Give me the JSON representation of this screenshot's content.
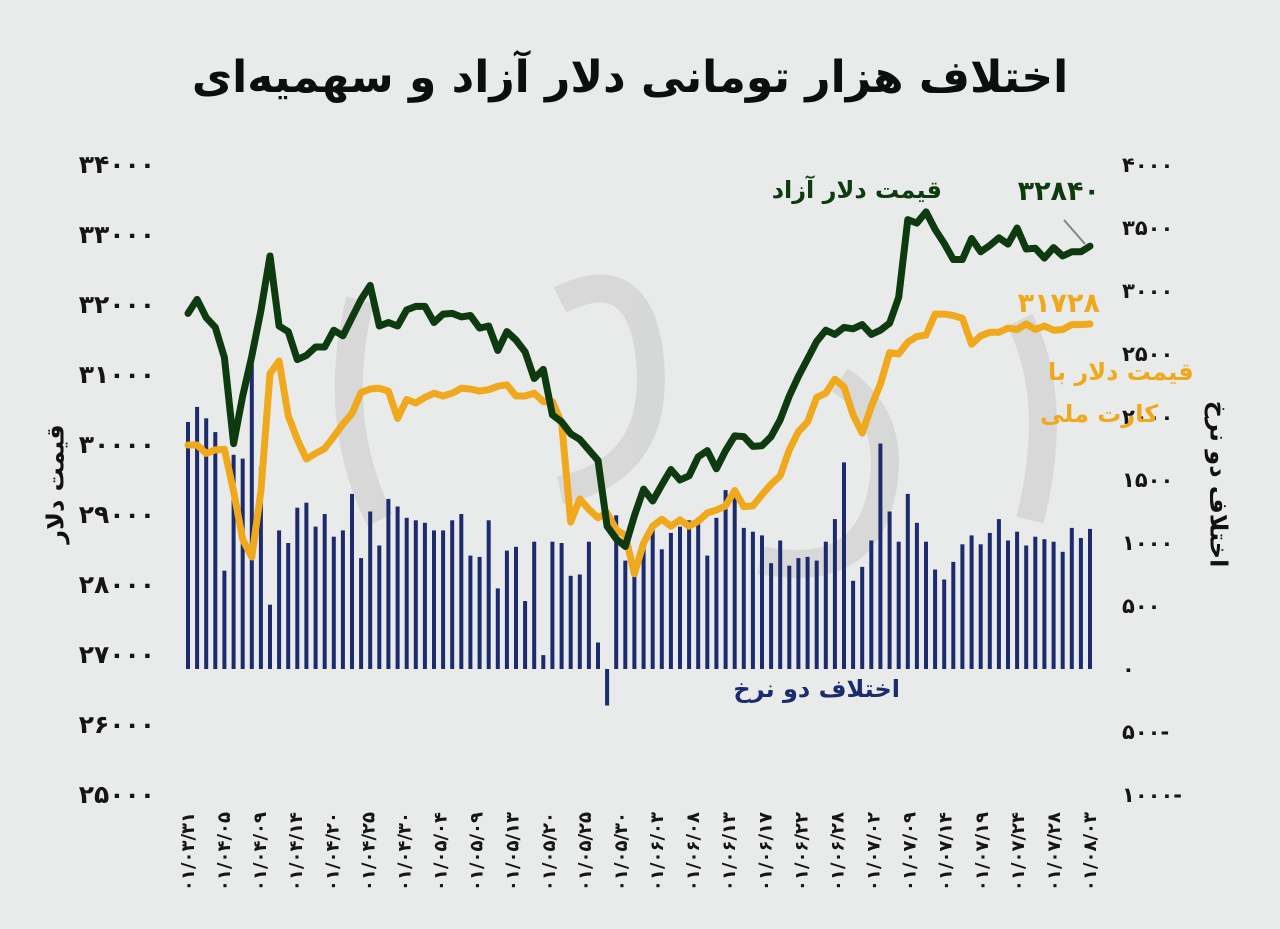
{
  "title": "اختلاف هزار تومانی دلار آزاد و سهمیه‌ای",
  "colors": {
    "free": "#0e3a10",
    "card": "#f0a81c",
    "diff": "#1c2a6e",
    "bg": "#e9ebea"
  },
  "chart_data": {
    "type": "bar",
    "title": "اختلاف هزار تومانی دلار آزاد و سهمیه‌ای",
    "ylabel_left": "قیمت دلار",
    "ylabel_right": "اختلاف دو نرخ",
    "ylim_left": [
      25000,
      34000
    ],
    "ylim_right": [
      -1000,
      4000
    ],
    "yticks_left": [
      "۳۴۰۰۰",
      "۳۳۰۰۰",
      "۳۲۰۰۰",
      "۳۱۰۰۰",
      "۳۰۰۰۰",
      "۲۹۰۰۰",
      "۲۸۰۰۰",
      "۲۷۰۰۰",
      "۲۶۰۰۰",
      "۲۵۰۰۰"
    ],
    "yticks_right": [
      "۴۰۰۰",
      "۳۵۰۰",
      "۳۰۰۰",
      "۲۵۰۰",
      "۲۰۰۰",
      "۱۵۰۰",
      "۱۰۰۰",
      "۵۰۰",
      "۰",
      "۵۰۰-",
      "۱۰۰۰-"
    ],
    "x_ticklabels": [
      "۰۱/۰۳/۳۱",
      "۰۱/۰۴/۰۵",
      "۰۱/۰۴/۰۹",
      "۰۱/۰۴/۱۴",
      "۰۱/۰۴/۲۰",
      "۰۱/۰۴/۲۵",
      "۰۱/۰۴/۳۰",
      "۰۱/۰۵/۰۴",
      "۰۱/۰۵/۰۹",
      "۰۱/۰۵/۱۳",
      "۰۱/۰۵/۲۰",
      "۰۱/۰۵/۲۵",
      "۰۱/۰۵/۳۰",
      "۰۱/۰۶/۰۳",
      "۰۱/۰۶/۰۸",
      "۰۱/۰۶/۱۳",
      "۰۱/۰۶/۱۷",
      "۰۱/۰۶/۲۲",
      "۰۱/۰۶/۲۸",
      "۰۱/۰۷/۰۲",
      "۰۱/۰۷/۰۹",
      "۰۱/۰۷/۱۴",
      "۰۱/۰۷/۱۹",
      "۰۱/۰۷/۲۴",
      "۰۱/۰۷/۲۸",
      "۰۱/۰۸/۰۳"
    ],
    "series": [
      {
        "name": "قیمت دلار آزاد",
        "axis": "left",
        "kind": "line",
        "values": [
          31880,
          32080,
          31820,
          31680,
          31250,
          30020,
          30700,
          31270,
          31920,
          32700,
          31700,
          31620,
          31220,
          31280,
          31400,
          31400,
          31640,
          31560,
          31820,
          32080,
          32280,
          31700,
          31750,
          31700,
          31930,
          31980,
          31980,
          31750,
          31870,
          31880,
          31830,
          31850,
          31670,
          31700,
          31350,
          31620,
          31500,
          31330,
          30950,
          31080,
          30430,
          30330,
          30160,
          30080,
          29930,
          29780,
          28840,
          28660,
          28550,
          28990,
          29370,
          29200,
          29430,
          29650,
          29500,
          29560,
          29830,
          29920,
          29660,
          29920,
          30130,
          30120,
          29980,
          29990,
          30120,
          30360,
          30700,
          30980,
          31230,
          31480,
          31640,
          31580,
          31680,
          31660,
          31720,
          31580,
          31640,
          31740,
          32110,
          33220,
          33170,
          33330,
          33080,
          32880,
          32650,
          32650,
          32950,
          32760,
          32850,
          32960,
          32870,
          33100,
          32800,
          32810,
          32670,
          32820,
          32700,
          32760,
          32760,
          32840
        ],
        "endpoint_label": "۳۲۸۴۰"
      },
      {
        "name": "قیمت دلار با کارت ملی",
        "axis": "left",
        "kind": "line",
        "values": [
          30000,
          30000,
          29880,
          29930,
          29940,
          29340,
          28650,
          28400,
          29340,
          31020,
          31200,
          30420,
          30080,
          29800,
          29880,
          29950,
          30120,
          30300,
          30450,
          30750,
          30800,
          30810,
          30770,
          30380,
          30650,
          30600,
          30680,
          30740,
          30700,
          30740,
          30810,
          30800,
          30770,
          30790,
          30840,
          30860,
          30700,
          30700,
          30740,
          30620,
          30620,
          30320,
          28900,
          29230,
          29080,
          28960,
          29030,
          28790,
          28710,
          28160,
          28600,
          28840,
          28940,
          28840,
          28930,
          28840,
          28910,
          29030,
          29070,
          29130,
          29350,
          29120,
          29130,
          29290,
          29440,
          29560,
          29930,
          30190,
          30330,
          30680,
          30740,
          30940,
          30830,
          30430,
          30170,
          30550,
          30870,
          31320,
          31300,
          31470,
          31550,
          31570,
          31870,
          31870,
          31850,
          31810,
          31440,
          31560,
          31610,
          31610,
          31670,
          31650,
          31730,
          31650,
          31700,
          31640,
          31650,
          31720,
          31720,
          31728
        ],
        "endpoint_label": "۳۱۷۲۸"
      },
      {
        "name": "اختلاف دو نرخ",
        "axis": "right",
        "kind": "bar",
        "values": [
          1960,
          2080,
          1990,
          1880,
          780,
          1700,
          1670,
          2430,
          1600,
          510,
          1100,
          1000,
          1280,
          1320,
          1130,
          1230,
          1050,
          1100,
          1390,
          880,
          1250,
          980,
          1350,
          1290,
          1200,
          1180,
          1160,
          1100,
          1100,
          1180,
          1230,
          900,
          890,
          1180,
          640,
          940,
          970,
          540,
          1010,
          110,
          1010,
          1000,
          740,
          750,
          1010,
          210,
          -290,
          1220,
          860,
          810,
          1000,
          1140,
          950,
          1080,
          1130,
          1180,
          1200,
          900,
          1200,
          1420,
          1400,
          1120,
          1090,
          1060,
          840,
          1020,
          820,
          880,
          890,
          860,
          1010,
          1190,
          1640,
          700,
          810,
          1020,
          1790,
          1250,
          1010,
          1390,
          1160,
          1010,
          790,
          710,
          850,
          990,
          1060,
          990,
          1080,
          1190,
          1020,
          1090,
          980,
          1050,
          1030,
          1010,
          930,
          1120,
          1040,
          1112
        ],
        "label": "اختلاف دو نرخ"
      }
    ]
  }
}
